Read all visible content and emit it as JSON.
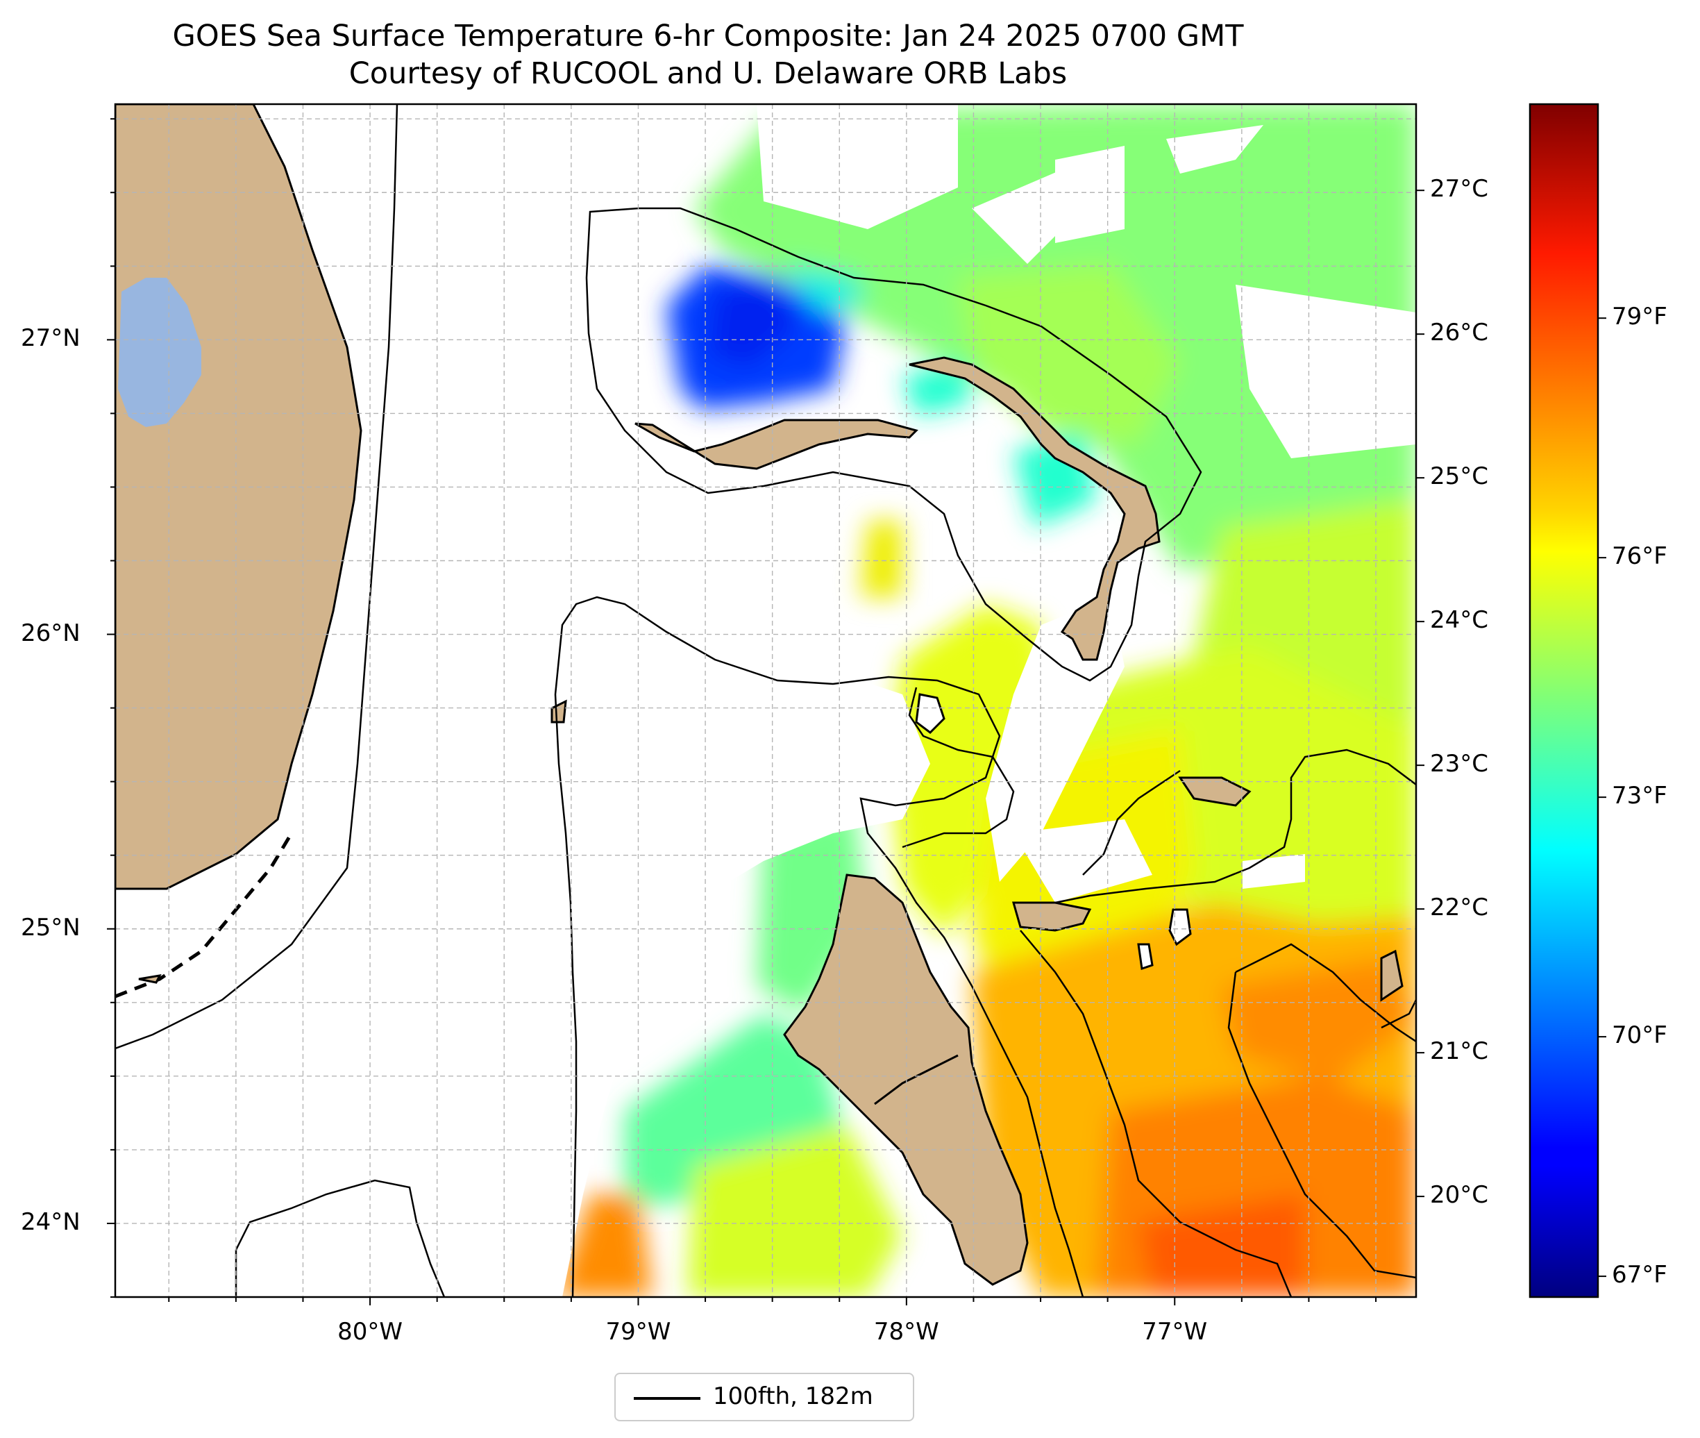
{
  "title": {
    "line1": "GOES Sea Surface Temperature 6-hr Composite: Jan 24 2025 0700 GMT",
    "line2": "Courtesy of RUCOOL and U. Delaware ORB Labs"
  },
  "map": {
    "lon_range": [
      -80.95,
      -76.1
    ],
    "lat_range": [
      23.75,
      27.8
    ],
    "lat_ticks": [
      {
        "value": 27,
        "label": "27°N"
      },
      {
        "value": 26,
        "label": "26°N"
      },
      {
        "value": 25,
        "label": "25°N"
      },
      {
        "value": 24,
        "label": "24°N"
      }
    ],
    "lon_ticks": [
      {
        "value": -80,
        "label": "80°W"
      },
      {
        "value": -79,
        "label": "79°W"
      },
      {
        "value": -78,
        "label": "78°W"
      },
      {
        "value": -77,
        "label": "77°W"
      }
    ],
    "gridlines": true,
    "colors": {
      "land": "#d2b48c",
      "lake": "#98b6e0",
      "nodata": "#ffffff",
      "contour": "#000000"
    }
  },
  "colorbar": {
    "colormap": "jet",
    "range_c": [
      19.3,
      27.6
    ],
    "celsius_ticks": [
      "27°C",
      "26°C",
      "25°C",
      "24°C",
      "23°C",
      "22°C",
      "21°C",
      "20°C"
    ],
    "celsius_values": [
      27,
      26,
      25,
      24,
      23,
      22,
      21,
      20
    ],
    "fahrenheit_ticks": [
      "79°F",
      "76°F",
      "73°F",
      "70°F",
      "67°F"
    ],
    "fahrenheit_values": [
      79,
      76,
      73,
      70,
      67
    ]
  },
  "legend": {
    "label": "100fth, 182m",
    "placement": "bottom-center"
  }
}
